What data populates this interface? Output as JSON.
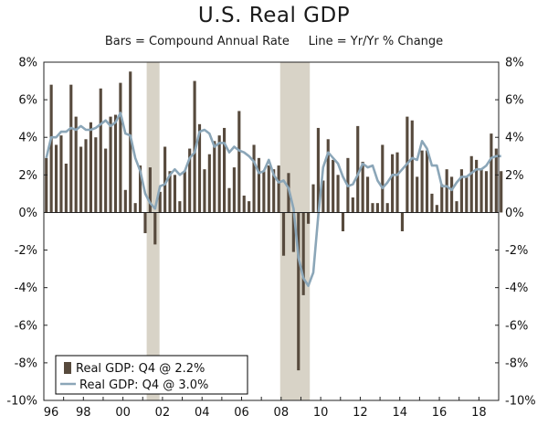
{
  "chart_data": {
    "type": "bar",
    "title": "U.S. Real GDP",
    "subtitle_left": "Bars = Compound Annual Rate",
    "subtitle_right": "Line = Yr/Yr % Change",
    "ylim": [
      -10,
      8
    ],
    "y_ticks": [
      8,
      6,
      4,
      2,
      0,
      -2,
      -4,
      -6,
      -8,
      -10
    ],
    "y_tick_labels": [
      "8%",
      "6%",
      "4%",
      "2%",
      "0%",
      "-2%",
      "-4%",
      "-6%",
      "-8%",
      "-10%"
    ],
    "x_range": [
      1996.0,
      2019.0
    ],
    "x_ticks": [
      1996,
      1998,
      2000,
      2002,
      2004,
      2006,
      2008,
      2010,
      2012,
      2014,
      2016,
      2018
    ],
    "x_tick_labels": [
      "96",
      "98",
      "00",
      "02",
      "04",
      "06",
      "08",
      "10",
      "12",
      "14",
      "16",
      "18"
    ],
    "recessions": [
      [
        2001.2,
        2001.85
      ],
      [
        2007.95,
        2009.45
      ]
    ],
    "colors": {
      "bars": "#574a3d",
      "line": "#8ba6b8",
      "recession": "#d8d3c7",
      "legend_border": "#000000"
    },
    "legend": [
      {
        "label": "Real GDP: Q4 @ 2.2%",
        "kind": "bar"
      },
      {
        "label": "Real GDP: Q4 @ 3.0%",
        "kind": "line"
      }
    ],
    "series": [
      {
        "name": "Real GDP (Compound Annual Rate)",
        "kind": "bar",
        "start_year": 1996,
        "values": [
          2.9,
          6.8,
          3.6,
          4.1,
          2.6,
          6.8,
          5.1,
          3.5,
          3.9,
          4.8,
          4.0,
          6.6,
          3.4,
          5.1,
          5.2,
          6.9,
          1.2,
          7.5,
          0.5,
          2.5,
          -1.1,
          2.4,
          -1.7,
          1.1,
          3.5,
          2.2,
          2.0,
          0.6,
          2.2,
          3.4,
          7.0,
          4.7,
          2.3,
          3.1,
          3.8,
          4.1,
          4.5,
          1.3,
          2.4,
          5.4,
          0.9,
          0.6,
          3.6,
          2.9,
          2.2,
          2.5,
          2.3,
          2.5,
          -2.3,
          2.1,
          -2.1,
          -8.4,
          -4.4,
          -0.6,
          1.5,
          4.5,
          1.7,
          3.9,
          2.8,
          2.0,
          -1.0,
          2.9,
          0.8,
          4.6,
          2.7,
          1.9,
          0.5,
          0.5,
          3.6,
          0.5,
          3.1,
          3.2,
          -1.0,
          5.1,
          4.9,
          1.9,
          3.3,
          3.3,
          1.0,
          0.4,
          1.5,
          2.3,
          1.9,
          0.6,
          2.3,
          1.9,
          3.0,
          2.8,
          2.3,
          2.2,
          4.2,
          3.4,
          2.2
        ]
      },
      {
        "name": "Real GDP (Yr/Yr % Change)",
        "kind": "line",
        "start_year": 1996,
        "values": [
          2.9,
          4.0,
          4.0,
          4.3,
          4.3,
          4.5,
          4.4,
          4.6,
          4.4,
          4.4,
          4.5,
          4.7,
          4.9,
          4.6,
          4.8,
          5.3,
          4.2,
          4.1,
          2.9,
          2.2,
          1.0,
          0.5,
          0.2,
          1.4,
          1.5,
          2.0,
          2.3,
          2.0,
          2.2,
          2.9,
          3.2,
          4.3,
          4.4,
          4.2,
          3.5,
          3.7,
          3.7,
          3.2,
          3.5,
          3.3,
          3.2,
          3.0,
          2.7,
          2.1,
          2.2,
          2.8,
          2.0,
          1.6,
          1.7,
          1.3,
          0.2,
          -2.4,
          -3.5,
          -3.9,
          -3.2,
          -0.2,
          2.4,
          3.2,
          2.9,
          2.6,
          1.9,
          1.4,
          1.5,
          2.0,
          2.6,
          2.4,
          2.5,
          1.7,
          1.3,
          1.6,
          2.0,
          2.0,
          2.3,
          2.6,
          2.9,
          2.8,
          3.8,
          3.4,
          2.5,
          2.5,
          1.4,
          1.4,
          1.2,
          1.6,
          1.9,
          1.9,
          2.1,
          2.3,
          2.3,
          2.5,
          2.9,
          3.0,
          3.0
        ]
      }
    ]
  }
}
